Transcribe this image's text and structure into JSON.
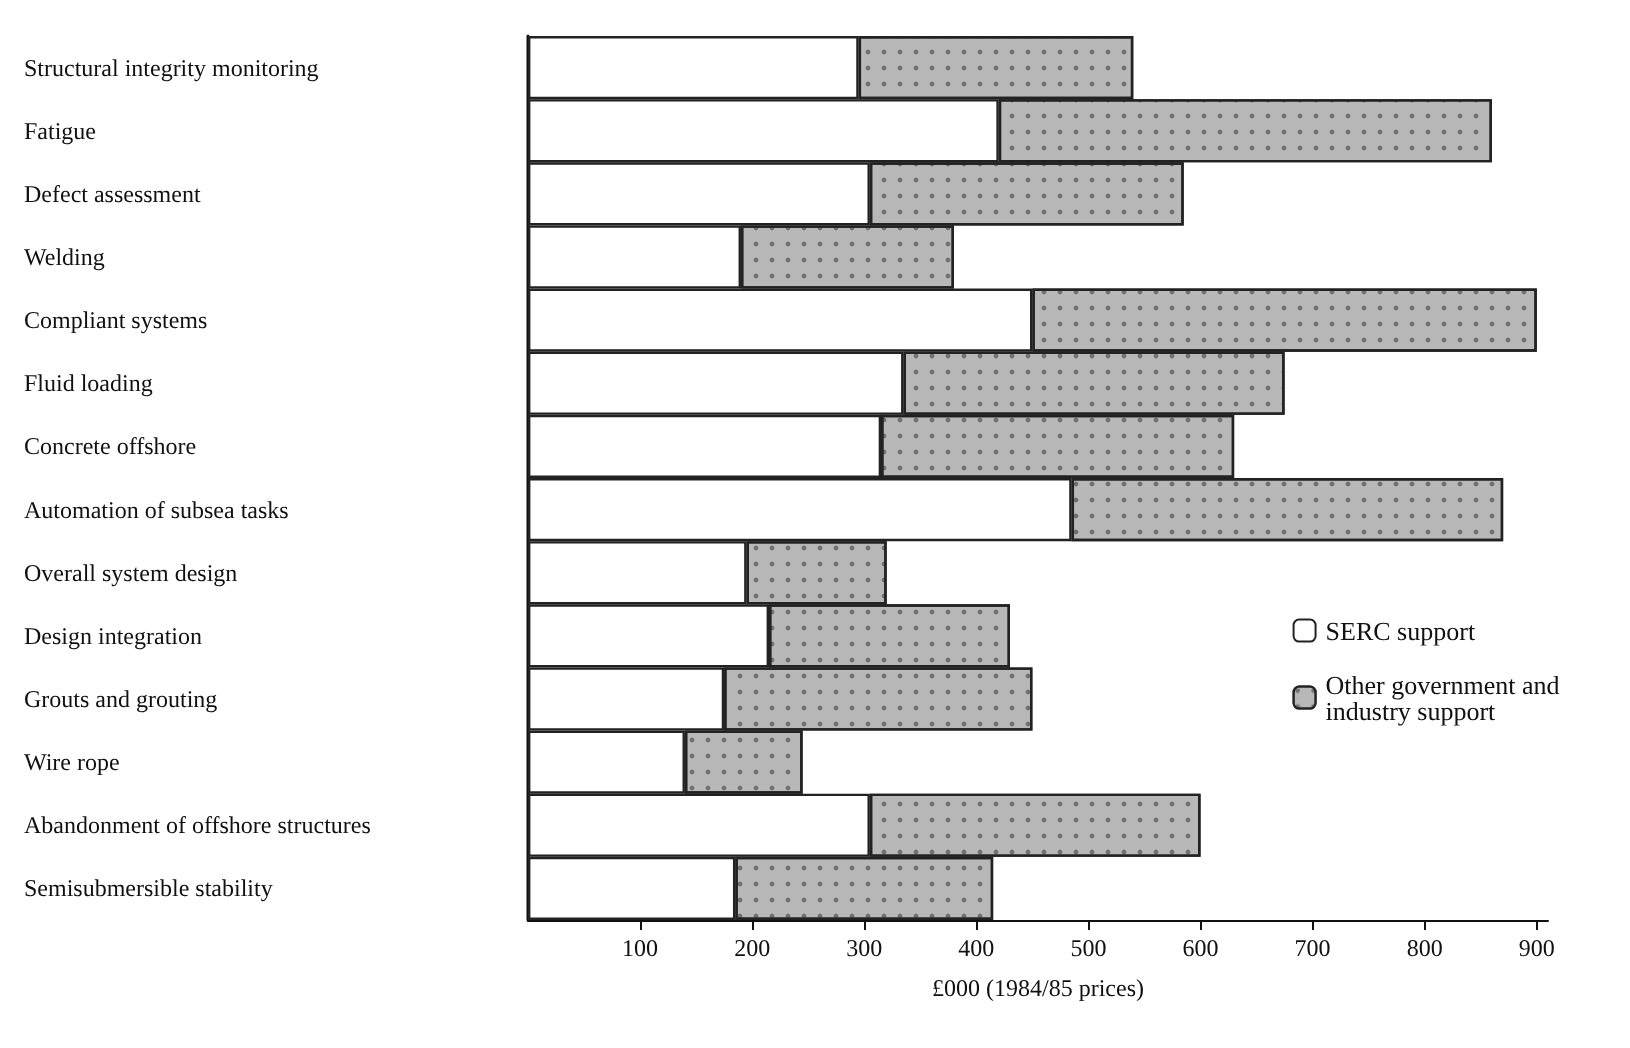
{
  "chart_data": {
    "type": "bar",
    "orientation": "horizontal",
    "stacked": true,
    "xlabel": "£000 (1984/85 prices)",
    "categories": [
      "Structural integrity monitoring",
      "Fatigue",
      "Defect assessment",
      "Welding",
      "Compliant systems",
      "Fluid loading",
      "Concrete offshore",
      "Automation of subsea tasks",
      "Overall system design",
      "Design integration",
      "Grouts and grouting",
      "Wire rope",
      "Abandonment of offshore structures",
      "Semisubmersible stability"
    ],
    "series": [
      {
        "name": "SERC support",
        "color": "#ffffff",
        "values": [
          295,
          420,
          305,
          190,
          450,
          335,
          315,
          485,
          195,
          215,
          175,
          140,
          305,
          185
        ]
      },
      {
        "name": "Other government and industry support",
        "color": "#b8b8b8",
        "values": [
          245,
          440,
          280,
          190,
          450,
          340,
          315,
          385,
          125,
          215,
          275,
          105,
          295,
          230
        ]
      }
    ],
    "xlim": [
      0,
      910
    ],
    "xticks": [
      100,
      200,
      300,
      400,
      500,
      600,
      700,
      800,
      900
    ],
    "grid": false,
    "legend": "right"
  }
}
